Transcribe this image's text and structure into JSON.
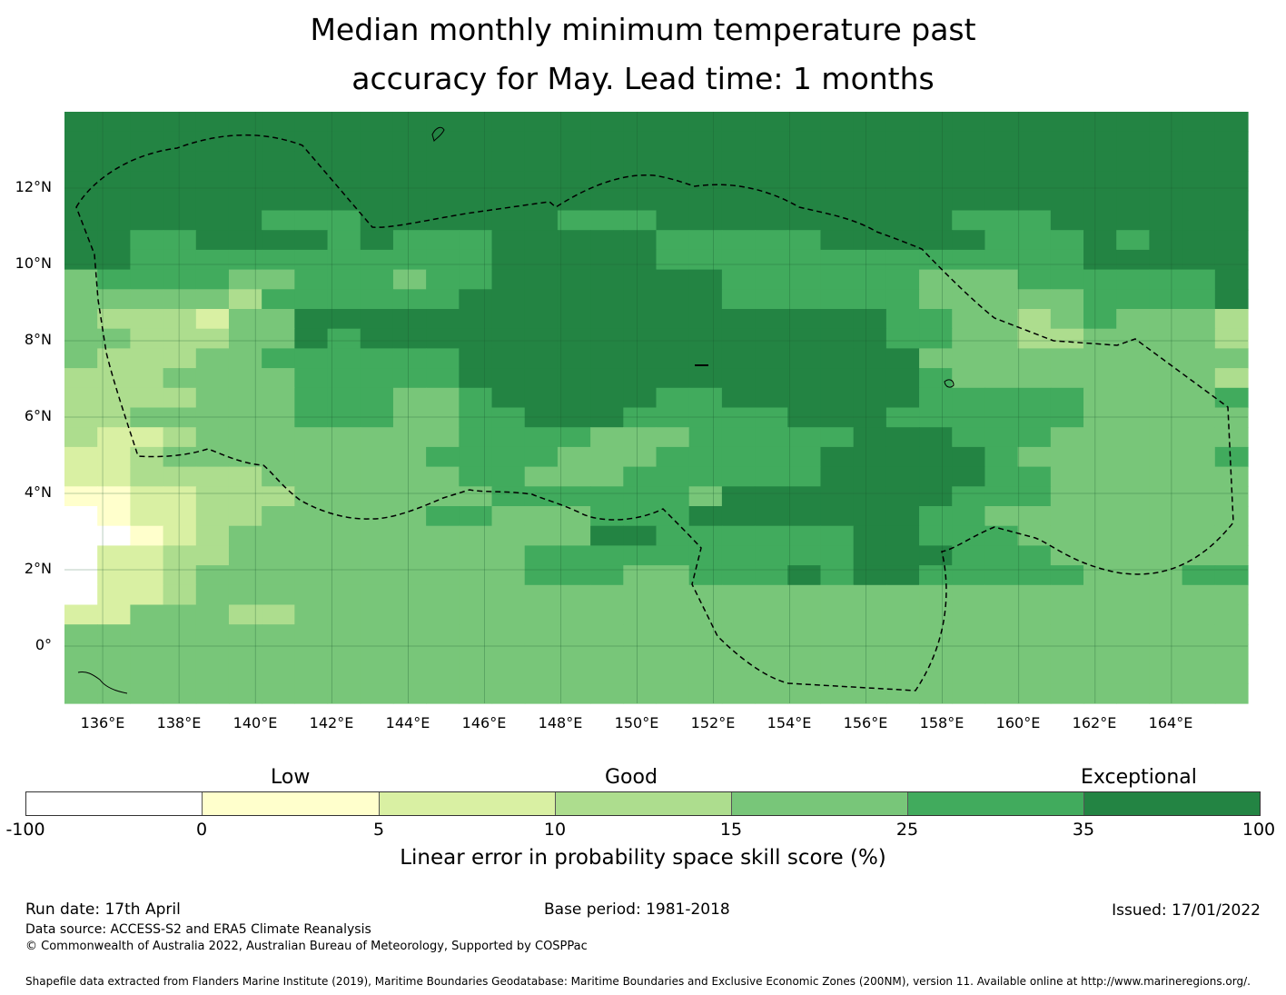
{
  "title_line1": "Median monthly minimum temperature past",
  "title_line2": "accuracy for May. Lead time: 1 months",
  "lat_labels": [
    "12°N",
    "10°N",
    "8°N",
    "6°N",
    "4°N",
    "2°N",
    "0°"
  ],
  "lon_labels": [
    "136°E",
    "138°E",
    "140°E",
    "142°E",
    "144°E",
    "146°E",
    "148°E",
    "150°E",
    "152°E",
    "154°E",
    "156°E",
    "158°E",
    "160°E",
    "162°E",
    "164°E"
  ],
  "legend": {
    "low": "Low",
    "good": "Good",
    "exceptional": "Exceptional",
    "ticks": [
      "-100",
      "0",
      "5",
      "10",
      "15",
      "25",
      "35",
      "100"
    ],
    "colors": [
      "#ffffff",
      "#ffffcc",
      "#d9f0a3",
      "#addd8e",
      "#78c679",
      "#41ab5d",
      "#238443"
    ],
    "label": "Linear error in probability space skill score (%)"
  },
  "footer": {
    "run_date": "Run date: 17th April",
    "base_period": "Base period: 1981-2018",
    "issued": "Issued: 17/01/2022",
    "data_source": "Data source: ACCESS-S2 and ERA5 Climate Reanalysis",
    "copyright": "© Commonwealth of Australia 2022, Australian Bureau of Meteorology, Supported by COSPPac",
    "shapefile": "Shapefile data extracted from Flanders Marine Institute (2019), Maritime Boundaries Geodatabase: Maritime Boundaries and Exclusive Economic Zones (200NM), version 11. Available online at http://www.marineregions.org/."
  },
  "map_data": {
    "lon_range": [
      135,
      166
    ],
    "lat_range": [
      -1.5,
      14
    ],
    "grid_rows": [
      "666666666666666666666666666666666666",
      "666666666666666666666666666666666666",
      "666666666666666666666666666666666666",
      "666666666666666666666666666666666666",
      "666666666666666666666666666666666666",
      "666666555666666555666666666555666666",
      "665566665655566666555556666655565666",
      "665555555555566666555555555555566666",
      "455554455545566666665555554445555556",
      "444443555555666666665555554444455556",
      "433324466666666666666666655443454443",
      "443334465666666666666666655443344443",
      "433344555555666666666666664444444444",
      "333444455555666666666666665444444443",
      "333344455544566666556666665555544445",
      "334444455544556665555566655555544444",
      "322344444444555544455555666555444444",
      "223444444445555444555556666654444445",
      "223333444444554445555556666655444444",
      "112233344444455555546666666555444444",
      "012233444445544455566666665544444444",
      "001234444444444466555555665554444444",
      "022334444444445555555555666555444444",
      "022344444444445554455565665555544455",
      "022344444444444444444444444444444444",
      "224443344444444444444444444444444444",
      "444444444444444444444444444444444444",
      "444444444444444444444444444444444444",
      "444444444444444444444444444444444444",
      "444444444444444444444444444444444444"
    ]
  }
}
